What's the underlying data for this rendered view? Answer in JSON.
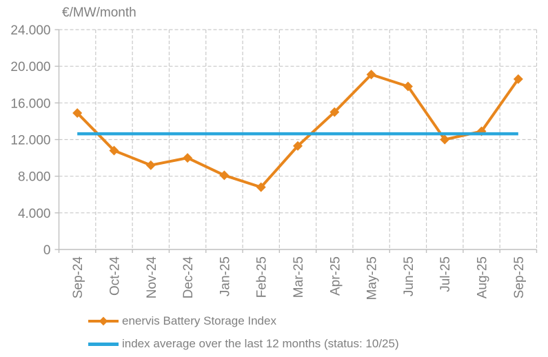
{
  "chart_data": {
    "type": "line",
    "title": "€/MW/month",
    "categories": [
      "Sep-24",
      "Oct-24",
      "Nov-24",
      "Dec-24",
      "Jan-25",
      "Feb-25",
      "Mar-25",
      "Apr-25",
      "May-25",
      "Jun-25",
      "Jul-25",
      "Aug-25",
      "Sep-25"
    ],
    "series": [
      {
        "name": "enervis Battery Storage Index",
        "color": "#E8861D",
        "marker": "diamond",
        "values": [
          14900,
          10800,
          9200,
          10000,
          8100,
          6800,
          11300,
          15000,
          19100,
          17800,
          12000,
          12900,
          18600
        ]
      }
    ],
    "average_line": {
      "name": "index average over the last 12 months (status: 10/25)",
      "color": "#2AA7DC",
      "value": 12633
    },
    "xlabel": "",
    "ylabel": "€/MW/month",
    "ylim": [
      0,
      24000
    ],
    "yticks": [
      {
        "value": 0,
        "label": "0"
      },
      {
        "value": 4000,
        "label": "4.000"
      },
      {
        "value": 8000,
        "label": "8.000"
      },
      {
        "value": 12000,
        "label": "12.000"
      },
      {
        "value": 16000,
        "label": "16.000"
      },
      {
        "value": 20000,
        "label": "20.000"
      },
      {
        "value": 24000,
        "label": "24.000"
      }
    ],
    "grid": true,
    "legend_position": "bottom-left"
  },
  "legend": {
    "series1": "enervis Battery Storage Index",
    "series2": "index average over the last 12 months (status: 10/25)"
  },
  "colors": {
    "series": "#E8861D",
    "average": "#2AA7DC",
    "text": "#808080",
    "grid": "#C9C9C9",
    "axis": "#BFBFBF"
  }
}
